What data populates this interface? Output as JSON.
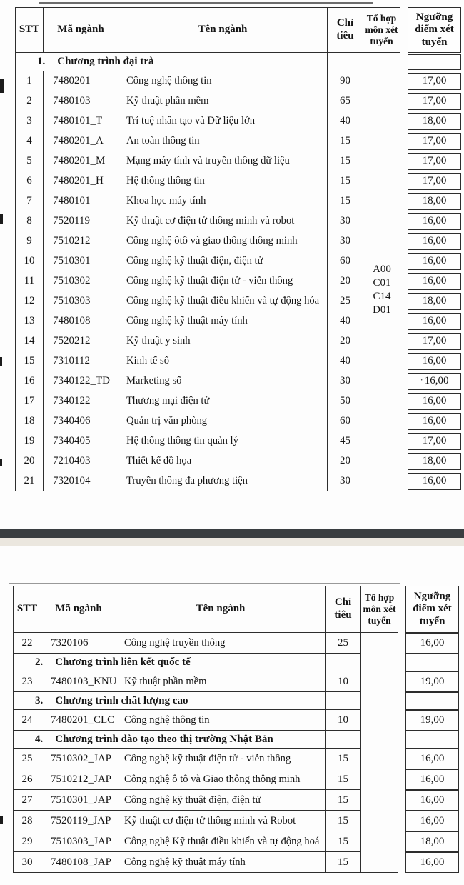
{
  "columns": {
    "stt": "STT",
    "code": "Mã ngành",
    "name": "Tên ngành",
    "quota": "Chỉ tiêu",
    "combo": "Tổ hợp môn xét tuyển",
    "threshold": "Ngưỡng điểm xét tuyển"
  },
  "colors": {
    "border": "#2d2d2d",
    "divider_band": "#3a3e41",
    "divider_strip": "#ebe7df",
    "text": "#141414"
  },
  "tables": [
    {
      "name": "page-1",
      "combo_codes": [
        "A00",
        "C01",
        "C14",
        "D01"
      ],
      "rows": [
        {
          "type": "section",
          "num": "1.",
          "title": "Chương trình đại trà",
          "threshold": ""
        },
        {
          "type": "data",
          "stt": "1",
          "code": "7480201",
          "name": "Công nghệ thông tin",
          "quota": "90",
          "threshold": "17,00"
        },
        {
          "type": "data",
          "stt": "2",
          "code": "7480103",
          "name": "Kỹ thuật phần mềm",
          "quota": "65",
          "threshold": "17,00"
        },
        {
          "type": "data",
          "stt": "3",
          "code": "7480101_T",
          "name": "Trí tuệ nhân tạo và Dữ liệu lớn",
          "quota": "40",
          "threshold": "18,00"
        },
        {
          "type": "data",
          "stt": "4",
          "code": "7480201_A",
          "name": "An toàn thông tin",
          "quota": "15",
          "threshold": "17,00"
        },
        {
          "type": "data",
          "stt": "5",
          "code": "7480201_M",
          "name": "Mạng máy tính và truyền thông dữ liệu",
          "quota": "15",
          "threshold": "17,00"
        },
        {
          "type": "data",
          "stt": "6",
          "code": "7480201_H",
          "name": "Hệ thống thông tin",
          "quota": "15",
          "threshold": "17,00"
        },
        {
          "type": "data",
          "stt": "7",
          "code": "7480101",
          "name": "Khoa học máy tính",
          "quota": "15",
          "threshold": "18,00"
        },
        {
          "type": "data",
          "stt": "8",
          "code": "7520119",
          "name": "Kỹ thuật cơ điện tử thông minh và robot",
          "quota": "30",
          "threshold": "16,00"
        },
        {
          "type": "data",
          "stt": "9",
          "code": "7510212",
          "name": "Công nghệ ôtô và giao thông thông minh",
          "quota": "30",
          "threshold": "16,00"
        },
        {
          "type": "data",
          "stt": "10",
          "code": "7510301",
          "name": "Công nghệ kỹ thuật điện, điện tử",
          "quota": "60",
          "threshold": "16,00"
        },
        {
          "type": "data",
          "stt": "11",
          "code": "7510302",
          "name": "Công nghệ kỹ thuật điện tử - viễn thông",
          "quota": "20",
          "threshold": "16,00"
        },
        {
          "type": "data",
          "stt": "12",
          "code": "7510303",
          "name": "Công nghệ kỹ thuật điều khiển và tự động hóa",
          "quota": "25",
          "threshold": "18,00"
        },
        {
          "type": "data",
          "stt": "13",
          "code": "7480108",
          "name": "Công nghệ kỹ thuật máy tính",
          "quota": "40",
          "threshold": "16,00"
        },
        {
          "type": "data",
          "stt": "14",
          "code": "7520212",
          "name": "Kỹ thuật y sinh",
          "quota": "20",
          "threshold": "17,00"
        },
        {
          "type": "data",
          "stt": "15",
          "code": "7310112",
          "name": "Kinh tế số",
          "quota": "40",
          "threshold": "16,00"
        },
        {
          "type": "data",
          "stt": "16",
          "code": "7340122_TD",
          "name": "Marketing số",
          "quota": "30",
          "threshold": "16,00",
          "dot": true
        },
        {
          "type": "data",
          "stt": "17",
          "code": "7340122",
          "name": "Thương mại điện tử",
          "quota": "50",
          "threshold": "16,00"
        },
        {
          "type": "data",
          "stt": "18",
          "code": "7340406",
          "name": "Quản trị văn phòng",
          "quota": "60",
          "threshold": "16,00"
        },
        {
          "type": "data",
          "stt": "19",
          "code": "7340405",
          "name": "Hệ thống thông tin quản lý",
          "quota": "45",
          "threshold": "17,00"
        },
        {
          "type": "data",
          "stt": "20",
          "code": "7210403",
          "name": "Thiết kế đồ họa",
          "quota": "20",
          "threshold": "18,00"
        },
        {
          "type": "data",
          "stt": "21",
          "code": "7320104",
          "name": "Truyền thông đa phương tiện",
          "quota": "30",
          "threshold": "16,00"
        }
      ]
    },
    {
      "name": "page-2",
      "combo_codes": [],
      "rows": [
        {
          "type": "data",
          "stt": "22",
          "code": "7320106",
          "name": "Công nghệ truyền thông",
          "quota": "25",
          "threshold": "16,00"
        },
        {
          "type": "section",
          "num": "2.",
          "title": "Chương trình liên kết quốc tế",
          "threshold": ""
        },
        {
          "type": "data",
          "stt": "23",
          "code": "7480103_KNU",
          "name": "Kỹ thuật phần mềm",
          "quota": "10",
          "threshold": "19,00"
        },
        {
          "type": "section",
          "num": "3.",
          "title": "Chương trình chất lượng cao",
          "threshold": ""
        },
        {
          "type": "data",
          "stt": "24",
          "code": "7480201_CLC",
          "name": "Công nghệ thông tin",
          "quota": "10",
          "threshold": "19,00"
        },
        {
          "type": "section",
          "num": "4.",
          "title": "Chương trình đào tạo theo thị trường Nhật Bản",
          "threshold": ""
        },
        {
          "type": "data",
          "stt": "25",
          "code": "7510302_JAP",
          "name": "Công nghệ kỹ thuật điện tử - viễn thông",
          "quota": "15",
          "threshold": "16,00"
        },
        {
          "type": "data",
          "stt": "26",
          "code": "7510212_JAP",
          "name": "Công nghệ ô tô và Giao thông thông minh",
          "quota": "15",
          "threshold": "16,00"
        },
        {
          "type": "data",
          "stt": "27",
          "code": "7510301_JAP",
          "name": "Công nghệ kỹ thuật điện, điện tử",
          "quota": "15",
          "threshold": "16,00"
        },
        {
          "type": "data",
          "stt": "28",
          "code": "7520119_JAP",
          "name": "Kỹ thuật cơ điện tử thông minh và Robot",
          "quota": "15",
          "threshold": "16,00"
        },
        {
          "type": "data",
          "stt": "29",
          "code": "7510303_JAP",
          "name": "Công nghệ Kỹ thuật điều khiển và tự động hoá",
          "quota": "15",
          "threshold": "18,00"
        },
        {
          "type": "data",
          "stt": "30",
          "code": "7480108_JAP",
          "name": "Công nghệ kỹ thuật máy tính",
          "quota": "15",
          "threshold": "16,00"
        }
      ]
    }
  ]
}
